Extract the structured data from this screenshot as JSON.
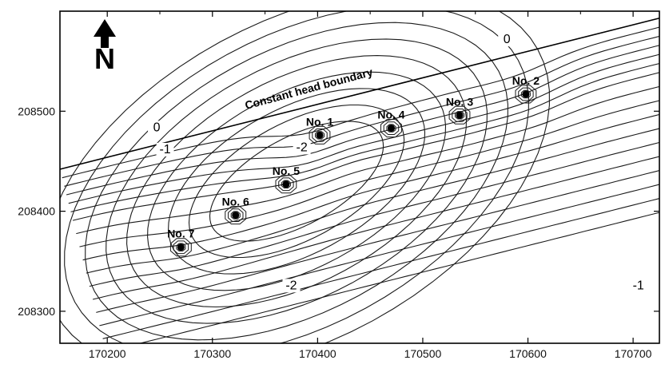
{
  "chart_data": {
    "type": "contour",
    "xlabel": "",
    "ylabel": "",
    "xlim": [
      170155,
      170725
    ],
    "ylim": [
      208268,
      208600
    ],
    "x_ticks": [
      170200,
      170300,
      170400,
      170500,
      170600,
      170700
    ],
    "x_tick_labels": [
      "170200",
      "170300",
      "170400",
      "170500",
      "170600",
      "170700"
    ],
    "y_ticks": [
      208300,
      208400,
      208500
    ],
    "y_tick_labels": [
      "208300",
      "208400",
      "208500"
    ],
    "boundary": {
      "label": "Constant head boundary",
      "start": [
        170155,
        208442
      ],
      "end": [
        170725,
        208593
      ]
    },
    "north_arrow_label": "N",
    "wells": [
      {
        "name": "No. 1",
        "x": 170402,
        "y": 208476
      },
      {
        "name": "No. 2",
        "x": 170598,
        "y": 208517
      },
      {
        "name": "No. 3",
        "x": 170535,
        "y": 208496
      },
      {
        "name": "No. 4",
        "x": 170470,
        "y": 208483
      },
      {
        "name": "No. 5",
        "x": 170370,
        "y": 208427
      },
      {
        "name": "No. 6",
        "x": 170322,
        "y": 208396
      },
      {
        "name": "No. 7",
        "x": 170270,
        "y": 208364
      }
    ],
    "contour_labels": [
      {
        "text": "0",
        "x": 170247,
        "y": 208480
      },
      {
        "text": "0",
        "x": 170580,
        "y": 208568
      },
      {
        "text": "-1",
        "x": 170255,
        "y": 208458
      },
      {
        "text": "-1",
        "x": 170705,
        "y": 208322
      },
      {
        "text": "-2",
        "x": 170385,
        "y": 208460
      },
      {
        "text": "-2",
        "x": 170375,
        "y": 208322
      }
    ]
  }
}
